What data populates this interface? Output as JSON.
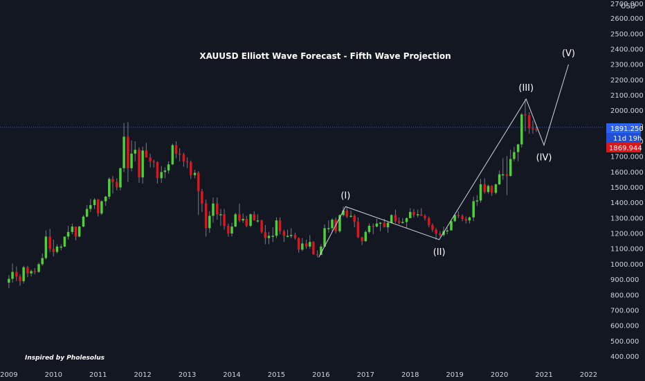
{
  "chart_data": {
    "type": "candlestick",
    "title": "XAUUSD Elliott Wave Forecast - Fifth Wave Projection",
    "credit": "Inspired by Pholesolus",
    "currency": "USD",
    "y_top_label": "2700.000",
    "x_ticks": [
      "2009",
      "2010",
      "2011",
      "2012",
      "2013",
      "2014",
      "2015",
      "2016",
      "2017",
      "2018",
      "2019",
      "2020",
      "2021",
      "2022"
    ],
    "y_ticks": [
      "2600.000",
      "2500.000",
      "2400.000",
      "2300.000",
      "2200.000",
      "2100.000",
      "2000.000",
      "1900.000",
      "1800.000",
      "1700.000",
      "1600.000",
      "1500.000",
      "1400.000",
      "1300.000",
      "1200.000",
      "1100.000",
      "1000.000",
      "900.000",
      "800.000",
      "700.000",
      "600.000",
      "500.000",
      "400.000"
    ],
    "ylim": [
      330,
      2720
    ],
    "xlim": [
      2008.8,
      2022.35
    ],
    "current_price": "1891.250",
    "countdown": "11d 19h",
    "ref_price": "1869.944",
    "colors": {
      "up": "#4cd137",
      "down": "#e0151b",
      "bg": "#131722",
      "price_tag": "#2962ff",
      "ref_tag": "#e0151b"
    },
    "waves": [
      {
        "label": "(I)",
        "x": 2016.55,
        "y": 1375,
        "text_pos": "above"
      },
      {
        "label": "(II)",
        "x": 2018.65,
        "y": 1160,
        "text_pos": "below"
      },
      {
        "label": "(III)",
        "x": 2020.6,
        "y": 2075,
        "text_pos": "above"
      },
      {
        "label": "(IV)",
        "x": 2021.0,
        "y": 1775,
        "text_pos": "below"
      },
      {
        "label": "(V)",
        "x": 2021.55,
        "y": 2300,
        "text_pos": "above"
      }
    ],
    "wave_path": [
      [
        2015.95,
        1045
      ],
      [
        2016.55,
        1375
      ],
      [
        2018.65,
        1160
      ],
      [
        2020.6,
        2075
      ],
      [
        2021.0,
        1775
      ],
      [
        2021.55,
        2300
      ]
    ],
    "candles": [
      [
        2009.0,
        880,
        905,
        930,
        845
      ],
      [
        2009.08,
        905,
        950,
        1005,
        880
      ],
      [
        2009.17,
        950,
        920,
        985,
        890
      ],
      [
        2009.25,
        920,
        890,
        935,
        860
      ],
      [
        2009.33,
        890,
        980,
        990,
        875
      ],
      [
        2009.42,
        980,
        940,
        990,
        915
      ],
      [
        2009.5,
        940,
        955,
        965,
        920
      ],
      [
        2009.58,
        955,
        950,
        975,
        935
      ],
      [
        2009.67,
        950,
        1000,
        1010,
        945
      ],
      [
        2009.75,
        1000,
        1040,
        1070,
        990
      ],
      [
        2009.83,
        1040,
        1180,
        1220,
        1030
      ],
      [
        2009.92,
        1180,
        1100,
        1230,
        1080
      ],
      [
        2010.0,
        1100,
        1080,
        1160,
        1050
      ],
      [
        2010.08,
        1080,
        1115,
        1130,
        1070
      ],
      [
        2010.17,
        1115,
        1115,
        1130,
        1090
      ],
      [
        2010.25,
        1115,
        1180,
        1180,
        1110
      ],
      [
        2010.33,
        1180,
        1210,
        1250,
        1160
      ],
      [
        2010.42,
        1210,
        1245,
        1265,
        1195
      ],
      [
        2010.5,
        1245,
        1180,
        1245,
        1155
      ],
      [
        2010.58,
        1180,
        1245,
        1250,
        1175
      ],
      [
        2010.67,
        1245,
        1310,
        1320,
        1240
      ],
      [
        2010.75,
        1310,
        1360,
        1385,
        1305
      ],
      [
        2010.83,
        1360,
        1385,
        1425,
        1340
      ],
      [
        2010.92,
        1385,
        1420,
        1430,
        1360
      ],
      [
        2011.0,
        1420,
        1330,
        1425,
        1310
      ],
      [
        2011.08,
        1330,
        1410,
        1415,
        1320
      ],
      [
        2011.17,
        1410,
        1440,
        1445,
        1380
      ],
      [
        2011.25,
        1440,
        1555,
        1565,
        1425
      ],
      [
        2011.33,
        1555,
        1535,
        1575,
        1460
      ],
      [
        2011.42,
        1535,
        1500,
        1560,
        1480
      ],
      [
        2011.5,
        1500,
        1625,
        1630,
        1480
      ],
      [
        2011.58,
        1625,
        1830,
        1920,
        1600
      ],
      [
        2011.67,
        1830,
        1625,
        1925,
        1535
      ],
      [
        2011.75,
        1625,
        1720,
        1805,
        1605
      ],
      [
        2011.83,
        1720,
        1745,
        1800,
        1670
      ],
      [
        2011.92,
        1745,
        1565,
        1760,
        1530
      ],
      [
        2012.0,
        1565,
        1740,
        1765,
        1525
      ],
      [
        2012.08,
        1740,
        1695,
        1790,
        1695
      ],
      [
        2012.17,
        1695,
        1670,
        1720,
        1630
      ],
      [
        2012.25,
        1670,
        1665,
        1680,
        1630
      ],
      [
        2012.33,
        1665,
        1560,
        1670,
        1525
      ],
      [
        2012.42,
        1560,
        1600,
        1640,
        1530
      ],
      [
        2012.5,
        1600,
        1610,
        1630,
        1560
      ],
      [
        2012.58,
        1610,
        1650,
        1670,
        1590
      ],
      [
        2012.67,
        1650,
        1775,
        1785,
        1645
      ],
      [
        2012.75,
        1775,
        1720,
        1800,
        1690
      ],
      [
        2012.83,
        1720,
        1715,
        1755,
        1670
      ],
      [
        2012.92,
        1715,
        1670,
        1725,
        1635
      ],
      [
        2013.0,
        1670,
        1665,
        1695,
        1625
      ],
      [
        2013.08,
        1665,
        1580,
        1675,
        1555
      ],
      [
        2013.17,
        1580,
        1595,
        1615,
        1560
      ],
      [
        2013.25,
        1595,
        1475,
        1605,
        1320
      ],
      [
        2013.33,
        1475,
        1395,
        1490,
        1340
      ],
      [
        2013.42,
        1395,
        1235,
        1420,
        1180
      ],
      [
        2013.5,
        1235,
        1315,
        1345,
        1205
      ],
      [
        2013.58,
        1315,
        1395,
        1435,
        1270
      ],
      [
        2013.67,
        1395,
        1325,
        1435,
        1290
      ],
      [
        2013.75,
        1325,
        1325,
        1360,
        1250
      ],
      [
        2013.83,
        1325,
        1250,
        1360,
        1225
      ],
      [
        2013.92,
        1250,
        1200,
        1265,
        1180
      ],
      [
        2014.0,
        1200,
        1245,
        1270,
        1180
      ],
      [
        2014.08,
        1245,
        1325,
        1335,
        1240
      ],
      [
        2014.17,
        1325,
        1285,
        1395,
        1275
      ],
      [
        2014.25,
        1285,
        1295,
        1330,
        1270
      ],
      [
        2014.33,
        1295,
        1250,
        1315,
        1240
      ],
      [
        2014.42,
        1250,
        1325,
        1330,
        1240
      ],
      [
        2014.5,
        1325,
        1285,
        1345,
        1285
      ],
      [
        2014.58,
        1285,
        1285,
        1325,
        1270
      ],
      [
        2014.67,
        1285,
        1210,
        1290,
        1200
      ],
      [
        2014.75,
        1210,
        1170,
        1255,
        1130
      ],
      [
        2014.83,
        1170,
        1185,
        1210,
        1130
      ],
      [
        2014.92,
        1185,
        1185,
        1240,
        1145
      ],
      [
        2015.0,
        1185,
        1285,
        1305,
        1170
      ],
      [
        2015.08,
        1285,
        1215,
        1305,
        1195
      ],
      [
        2015.17,
        1215,
        1185,
        1225,
        1145
      ],
      [
        2015.25,
        1185,
        1185,
        1225,
        1175
      ],
      [
        2015.33,
        1185,
        1190,
        1235,
        1170
      ],
      [
        2015.42,
        1190,
        1170,
        1205,
        1160
      ],
      [
        2015.5,
        1170,
        1095,
        1175,
        1075
      ],
      [
        2015.58,
        1095,
        1135,
        1170,
        1085
      ],
      [
        2015.67,
        1135,
        1115,
        1160,
        1100
      ],
      [
        2015.75,
        1115,
        1145,
        1190,
        1100
      ],
      [
        2015.83,
        1145,
        1065,
        1150,
        1060
      ],
      [
        2015.92,
        1065,
        1060,
        1090,
        1045
      ],
      [
        2016.0,
        1060,
        1115,
        1130,
        1070
      ],
      [
        2016.08,
        1115,
        1235,
        1260,
        1110
      ],
      [
        2016.17,
        1235,
        1235,
        1285,
        1205
      ],
      [
        2016.25,
        1235,
        1290,
        1300,
        1210
      ],
      [
        2016.33,
        1290,
        1215,
        1305,
        1200
      ],
      [
        2016.42,
        1215,
        1320,
        1325,
        1205
      ],
      [
        2016.5,
        1320,
        1350,
        1375,
        1310
      ],
      [
        2016.58,
        1350,
        1310,
        1375,
        1300
      ],
      [
        2016.67,
        1310,
        1315,
        1350,
        1305
      ],
      [
        2016.75,
        1315,
        1275,
        1325,
        1240
      ],
      [
        2016.83,
        1275,
        1175,
        1305,
        1170
      ],
      [
        2016.92,
        1175,
        1150,
        1180,
        1125
      ],
      [
        2017.0,
        1150,
        1210,
        1220,
        1145
      ],
      [
        2017.08,
        1210,
        1250,
        1265,
        1200
      ],
      [
        2017.17,
        1250,
        1245,
        1265,
        1195
      ],
      [
        2017.25,
        1245,
        1265,
        1295,
        1240
      ],
      [
        2017.33,
        1265,
        1270,
        1275,
        1215
      ],
      [
        2017.42,
        1270,
        1240,
        1295,
        1240
      ],
      [
        2017.5,
        1240,
        1270,
        1275,
        1205
      ],
      [
        2017.58,
        1270,
        1320,
        1325,
        1265
      ],
      [
        2017.67,
        1320,
        1280,
        1355,
        1270
      ],
      [
        2017.75,
        1280,
        1270,
        1305,
        1260
      ],
      [
        2017.83,
        1270,
        1275,
        1300,
        1265
      ],
      [
        2017.92,
        1275,
        1300,
        1305,
        1235
      ],
      [
        2018.0,
        1300,
        1340,
        1365,
        1300
      ],
      [
        2018.08,
        1340,
        1320,
        1360,
        1305
      ],
      [
        2018.17,
        1320,
        1325,
        1355,
        1305
      ],
      [
        2018.25,
        1325,
        1315,
        1365,
        1315
      ],
      [
        2018.33,
        1315,
        1300,
        1325,
        1285
      ],
      [
        2018.42,
        1300,
        1255,
        1310,
        1240
      ],
      [
        2018.5,
        1255,
        1225,
        1265,
        1210
      ],
      [
        2018.58,
        1225,
        1200,
        1235,
        1160
      ],
      [
        2018.67,
        1200,
        1190,
        1215,
        1180
      ],
      [
        2018.75,
        1190,
        1215,
        1245,
        1180
      ],
      [
        2018.83,
        1215,
        1220,
        1240,
        1195
      ],
      [
        2018.92,
        1220,
        1280,
        1285,
        1220
      ],
      [
        2019.0,
        1280,
        1320,
        1325,
        1275
      ],
      [
        2019.08,
        1320,
        1315,
        1345,
        1300
      ],
      [
        2019.17,
        1315,
        1295,
        1325,
        1280
      ],
      [
        2019.25,
        1295,
        1285,
        1310,
        1265
      ],
      [
        2019.33,
        1285,
        1305,
        1310,
        1265
      ],
      [
        2019.42,
        1305,
        1410,
        1440,
        1280
      ],
      [
        2019.5,
        1410,
        1415,
        1450,
        1380
      ],
      [
        2019.58,
        1415,
        1520,
        1555,
        1400
      ],
      [
        2019.67,
        1520,
        1470,
        1560,
        1460
      ],
      [
        2019.75,
        1470,
        1510,
        1520,
        1460
      ],
      [
        2019.83,
        1510,
        1465,
        1515,
        1445
      ],
      [
        2019.92,
        1465,
        1520,
        1525,
        1455
      ],
      [
        2020.0,
        1520,
        1585,
        1610,
        1515
      ],
      [
        2020.08,
        1585,
        1585,
        1690,
        1550
      ],
      [
        2020.17,
        1585,
        1575,
        1705,
        1450
      ],
      [
        2020.25,
        1575,
        1685,
        1745,
        1570
      ],
      [
        2020.33,
        1685,
        1730,
        1765,
        1670
      ],
      [
        2020.42,
        1730,
        1780,
        1785,
        1670
      ],
      [
        2020.5,
        1780,
        1975,
        1985,
        1760
      ],
      [
        2020.58,
        1975,
        1970,
        2075,
        1865
      ],
      [
        2020.67,
        1970,
        1885,
        1990,
        1850
      ],
      [
        2020.75,
        1885,
        1880,
        1935,
        1850
      ],
      [
        2020.83,
        1880,
        1875,
        1895,
        1860
      ]
    ]
  }
}
